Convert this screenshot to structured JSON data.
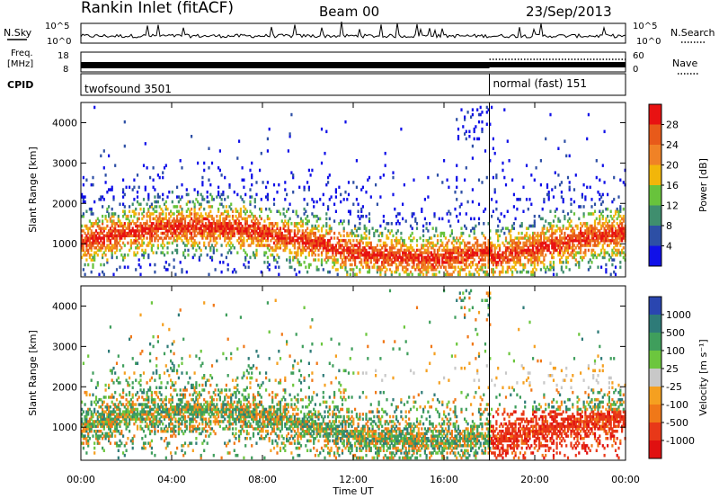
{
  "header": {
    "station": "Rankin Inlet (fitACF)",
    "beam": "Beam 00",
    "date": "23/Sep/2013"
  },
  "sky_panel": {
    "left_label": "N.Sky",
    "right_label": "N.Search",
    "tick_hi": "10^5",
    "tick_lo": "10^0"
  },
  "freq_panel": {
    "label_line1": "Freq.",
    "label_line2": "[MHz]",
    "tick_hi": "18",
    "tick_lo": "8",
    "right_label": "Nave",
    "right_tick_hi": "60",
    "right_tick_lo": "0"
  },
  "cpid_panel": {
    "label": "CPID",
    "program1": "twofsound 3501",
    "program2": "normal (fast) 151",
    "switch_time_h": 18.0
  },
  "chart_data": [
    {
      "type": "heatmap",
      "panel": "power",
      "ylabel": "Slant Range [km]",
      "yticks": [
        "1000",
        "2000",
        "3000",
        "4000"
      ],
      "ylim": [
        180,
        4500
      ],
      "colorbar_label": "Power [dB]",
      "colorbar_ticks": [
        "4",
        "8",
        "12",
        "16",
        "20",
        "24",
        "28"
      ],
      "colorbar_colors": [
        "#1010e8",
        "#2d4fa5",
        "#3f8e6e",
        "#68c33c",
        "#f2b60a",
        "#f08226",
        "#e85a1a",
        "#e81212"
      ],
      "x_range_h": [
        0,
        24
      ]
    },
    {
      "type": "heatmap",
      "panel": "velocity",
      "ylabel": "Slant Range [km]",
      "yticks": [
        "1000",
        "2000",
        "3000",
        "4000"
      ],
      "ylim": [
        180,
        4500
      ],
      "colorbar_label": "Velocity [m s⁻¹]",
      "colorbar_ticks": [
        "1000",
        "500",
        "100",
        "25",
        "-25",
        "-100",
        "-500",
        "-1000"
      ],
      "colorbar_colors": [
        "#2a46b0",
        "#2e7b78",
        "#3f9e5c",
        "#6cc63e",
        "#c8c8c8",
        "#f5a020",
        "#f07818",
        "#e83818",
        "#e01010"
      ],
      "x_range_h": [
        0,
        24
      ]
    }
  ],
  "time_axis": {
    "xlabel": "Time UT",
    "ticks": [
      "00:00",
      "04:00",
      "08:00",
      "12:00",
      "16:00",
      "20:00",
      "00:00"
    ]
  }
}
